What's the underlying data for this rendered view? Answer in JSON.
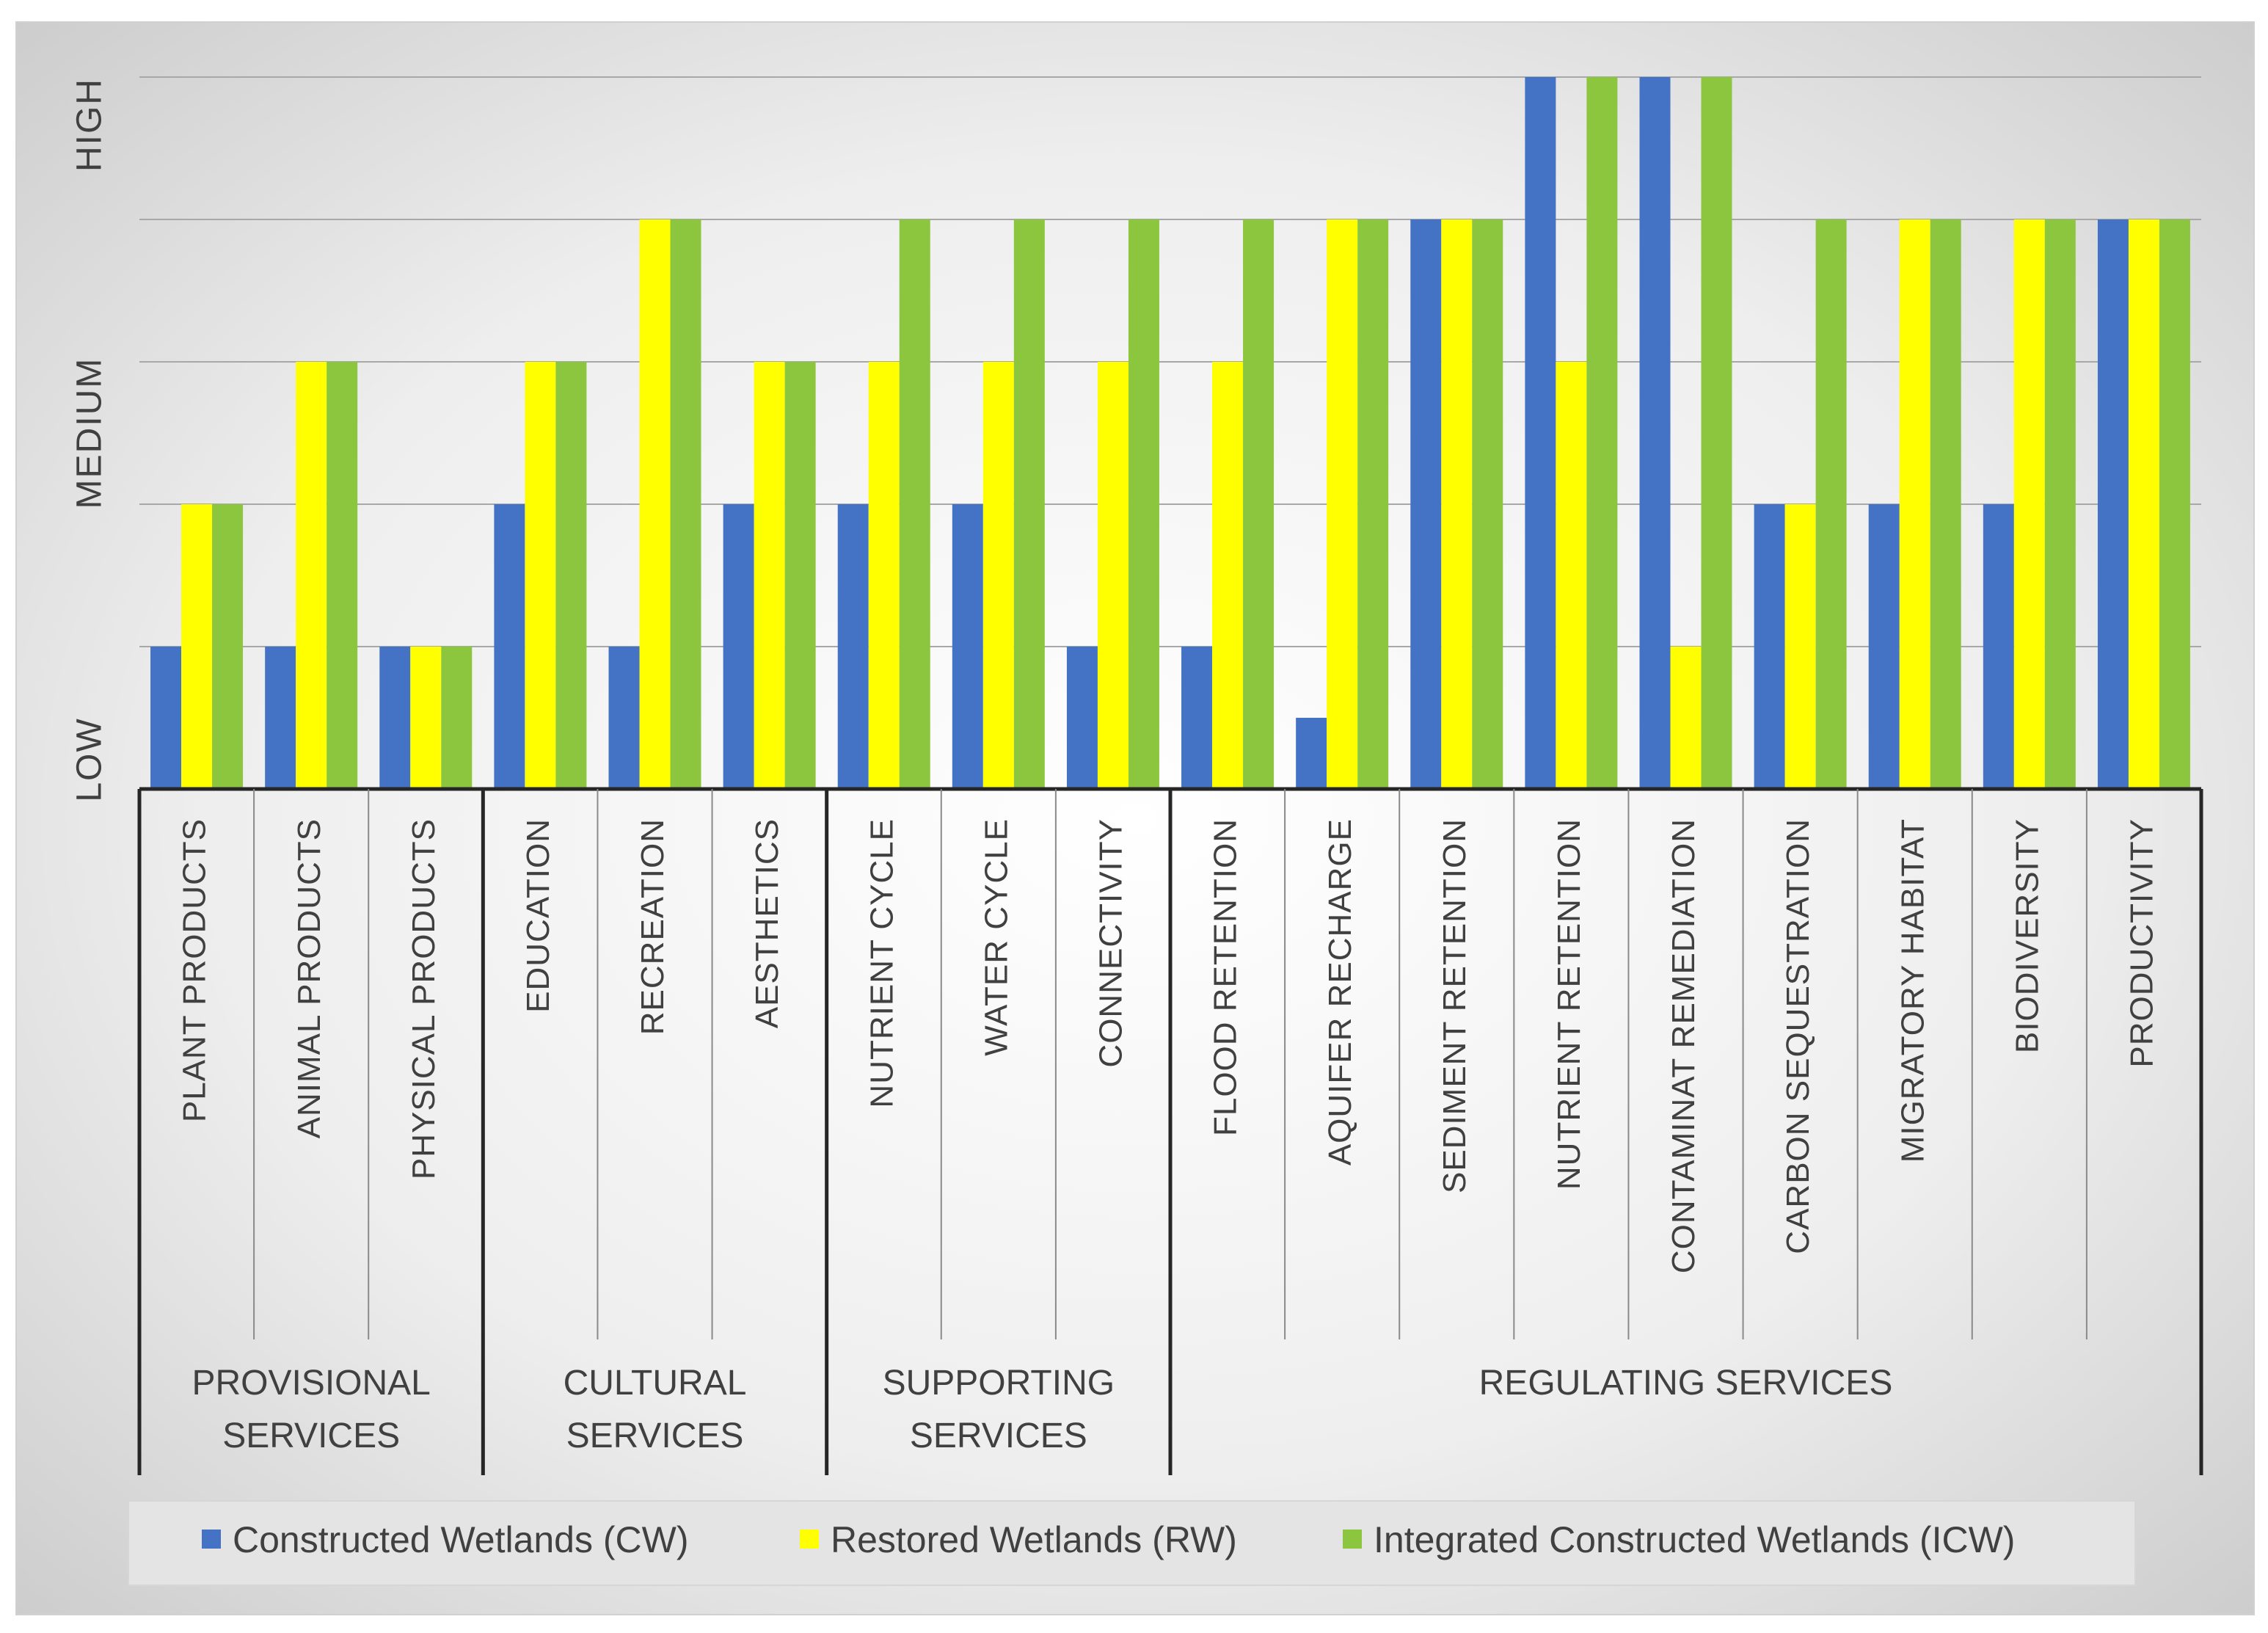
{
  "chart_data": {
    "type": "bar",
    "title": "",
    "xlabel": "",
    "ylabel": "",
    "y_levels": {
      "LOW": 0,
      "MEDIUM": 2,
      "HIGH": 5
    },
    "y_tick_labels": [
      {
        "label": "LOW",
        "value": 0
      },
      {
        "label": "MEDIUM",
        "value": 2
      },
      {
        "label": "HIGH",
        "value": 5
      }
    ],
    "ylim": [
      0,
      5
    ],
    "grid": true,
    "legend_position": "bottom",
    "colors": {
      "CW": "#4472C4",
      "RW": "#FFFF00",
      "ICW": "#8CC63F"
    },
    "categories": [
      "PLANT PRODUCTS",
      "ANIMAL PRODUCTS",
      "PHYSICAL PRODUCTS",
      "EDUCATION",
      "RECREATION",
      "AESTHETICS",
      "NUTRIENT CYCLE",
      "WATER CYCLE",
      "CONNECTIVITY",
      "FLOOD RETENTION",
      "AQUIFER RECHARGE",
      "SEDIMENT RETENTION",
      "NUTRIENT RETENTION",
      "CONTAMINAT REMEDIATION",
      "CARBON SEQUESTRATION",
      "MIGRATORY HABITAT",
      "BIODIVERSITY",
      "PRODUCTIVITY"
    ],
    "groups": [
      {
        "name": "PROVISIONAL SERVICES",
        "lines": [
          "PROVISIONAL",
          "SERVICES"
        ],
        "count": 3
      },
      {
        "name": "CULTURAL SERVICES",
        "lines": [
          "CULTURAL",
          "SERVICES"
        ],
        "count": 3
      },
      {
        "name": "SUPPORTING SERVICES",
        "lines": [
          "SUPPORTING",
          "SERVICES"
        ],
        "count": 3
      },
      {
        "name": "REGULATING SERVICES",
        "lines": [
          "REGULATING SERVICES"
        ],
        "count": 9
      }
    ],
    "series": [
      {
        "name": "Constructed Wetlands (CW)",
        "key": "CW",
        "values": [
          1,
          1,
          1,
          2,
          1,
          2,
          2,
          2,
          1,
          1,
          0.5,
          4,
          5,
          5,
          2,
          2,
          2,
          4
        ]
      },
      {
        "name": "Restored Wetlands (RW)",
        "key": "RW",
        "values": [
          2,
          3,
          1,
          3,
          4,
          3,
          3,
          3,
          3,
          3,
          4,
          4,
          3,
          1,
          2,
          4,
          4,
          4
        ]
      },
      {
        "name": "Integrated Constructed Wetlands (ICW)",
        "key": "ICW",
        "values": [
          2,
          3,
          1,
          3,
          4,
          3,
          4,
          4,
          4,
          4,
          4,
          4,
          5,
          5,
          4,
          4,
          4,
          4
        ]
      }
    ]
  }
}
